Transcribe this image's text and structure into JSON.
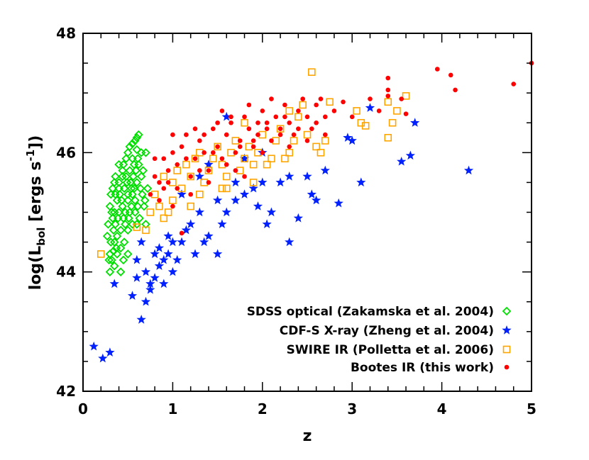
{
  "chart_data": {
    "type": "scatter",
    "xlabel": "z",
    "ylabel": {
      "prefix": "log(L",
      "sub": "bol",
      "mid": " [ergs s",
      "sup": "-1",
      "suffix": "])"
    },
    "xlim": [
      0,
      5
    ],
    "ylim": [
      42,
      48
    ],
    "x_ticks": [
      "0",
      "1",
      "2",
      "3",
      "4",
      "5"
    ],
    "x_tick_values": [
      0,
      1,
      2,
      3,
      4,
      5
    ],
    "y_ticks": [
      "42",
      "44",
      "46",
      "48"
    ],
    "y_tick_values": [
      42,
      44,
      46,
      48
    ],
    "x_minor_step": 0.2,
    "y_minor_step": 0.5,
    "legend_position": "bottom-right",
    "series": [
      {
        "name": "SDSS optical (Zakamska et al. 2004)",
        "marker": "diamond",
        "color": "#00e000",
        "values": [
          [
            0.3,
            44.0
          ],
          [
            0.32,
            44.2
          ],
          [
            0.35,
            44.5
          ],
          [
            0.28,
            44.8
          ],
          [
            0.3,
            45.1
          ],
          [
            0.33,
            45.4
          ],
          [
            0.36,
            45.3
          ],
          [
            0.4,
            45.0
          ],
          [
            0.42,
            44.7
          ],
          [
            0.45,
            44.9
          ],
          [
            0.38,
            44.6
          ],
          [
            0.4,
            45.5
          ],
          [
            0.44,
            45.7
          ],
          [
            0.48,
            45.6
          ],
          [
            0.5,
            45.3
          ],
          [
            0.52,
            45.0
          ],
          [
            0.55,
            44.8
          ],
          [
            0.58,
            45.2
          ],
          [
            0.6,
            45.5
          ],
          [
            0.62,
            45.8
          ],
          [
            0.65,
            45.6
          ],
          [
            0.55,
            45.9
          ],
          [
            0.5,
            46.0
          ],
          [
            0.48,
            45.9
          ],
          [
            0.45,
            45.8
          ],
          [
            0.58,
            46.2
          ],
          [
            0.55,
            46.15
          ],
          [
            0.52,
            46.1
          ],
          [
            0.6,
            46.05
          ],
          [
            0.65,
            46.0
          ],
          [
            0.62,
            46.3
          ],
          [
            0.68,
            45.1
          ],
          [
            0.7,
            44.8
          ],
          [
            0.72,
            45.4
          ],
          [
            0.35,
            44.1
          ],
          [
            0.3,
            44.3
          ],
          [
            0.27,
            44.6
          ],
          [
            0.33,
            44.9
          ],
          [
            0.36,
            45.6
          ],
          [
            0.4,
            45.8
          ],
          [
            0.42,
            44.4
          ],
          [
            0.46,
            44.5
          ],
          [
            0.5,
            44.7
          ],
          [
            0.53,
            45.5
          ],
          [
            0.57,
            45.4
          ],
          [
            0.61,
            45.1
          ],
          [
            0.63,
            44.9
          ],
          [
            0.66,
            45.3
          ],
          [
            0.35,
            45.0
          ],
          [
            0.38,
            45.2
          ],
          [
            0.41,
            45.3
          ],
          [
            0.44,
            45.1
          ],
          [
            0.47,
            45.0
          ],
          [
            0.51,
            44.9
          ],
          [
            0.54,
            45.1
          ],
          [
            0.56,
            45.6
          ],
          [
            0.59,
            45.7
          ],
          [
            0.64,
            45.4
          ],
          [
            0.67,
            45.7
          ],
          [
            0.69,
            45.2
          ],
          [
            0.31,
            44.5
          ],
          [
            0.34,
            44.7
          ],
          [
            0.37,
            44.4
          ],
          [
            0.39,
            44.9
          ],
          [
            0.43,
            45.2
          ],
          [
            0.46,
            45.4
          ],
          [
            0.49,
            45.5
          ],
          [
            0.52,
            45.7
          ],
          [
            0.55,
            45.3
          ],
          [
            0.58,
            45.0
          ],
          [
            0.6,
            44.8
          ],
          [
            0.29,
            44.2
          ],
          [
            0.32,
            45.0
          ],
          [
            0.36,
            44.8
          ],
          [
            0.4,
            45.4
          ],
          [
            0.44,
            45.6
          ],
          [
            0.47,
            44.8
          ],
          [
            0.5,
            45.2
          ],
          [
            0.54,
            45.4
          ],
          [
            0.57,
            45.8
          ],
          [
            0.61,
            45.9
          ],
          [
            0.5,
            44.3
          ],
          [
            0.45,
            44.2
          ],
          [
            0.42,
            44.0
          ],
          [
            0.38,
            44.3
          ],
          [
            0.34,
            44.35
          ],
          [
            0.31,
            45.3
          ],
          [
            0.35,
            45.5
          ],
          [
            0.6,
            46.25
          ],
          [
            0.7,
            46.0
          ]
        ]
      },
      {
        "name": "CDF-S X-ray (Zheng et al. 2004)",
        "marker": "star",
        "color": "#0020ff",
        "values": [
          [
            0.12,
            42.75
          ],
          [
            0.22,
            42.55
          ],
          [
            0.3,
            42.65
          ],
          [
            0.65,
            43.2
          ],
          [
            0.35,
            43.8
          ],
          [
            0.55,
            43.6
          ],
          [
            0.6,
            43.9
          ],
          [
            0.7,
            43.5
          ],
          [
            0.75,
            43.7
          ],
          [
            0.8,
            43.9
          ],
          [
            0.85,
            44.1
          ],
          [
            0.9,
            44.2
          ],
          [
            0.95,
            44.3
          ],
          [
            0.6,
            44.2
          ],
          [
            0.65,
            44.5
          ],
          [
            0.7,
            44.0
          ],
          [
            0.8,
            44.3
          ],
          [
            0.75,
            43.8
          ],
          [
            0.9,
            43.8
          ],
          [
            1.0,
            44.0
          ],
          [
            1.05,
            44.2
          ],
          [
            1.1,
            44.5
          ],
          [
            1.15,
            44.7
          ],
          [
            1.2,
            44.8
          ],
          [
            1.3,
            45.0
          ],
          [
            1.35,
            44.5
          ],
          [
            1.4,
            44.6
          ],
          [
            1.5,
            44.3
          ],
          [
            1.55,
            44.8
          ],
          [
            1.6,
            45.0
          ],
          [
            1.7,
            45.2
          ],
          [
            1.8,
            45.3
          ],
          [
            1.9,
            45.4
          ],
          [
            2.0,
            45.5
          ],
          [
            2.05,
            44.8
          ],
          [
            2.1,
            45.0
          ],
          [
            2.2,
            45.5
          ],
          [
            2.3,
            45.6
          ],
          [
            2.4,
            44.9
          ],
          [
            2.5,
            45.6
          ],
          [
            2.55,
            45.3
          ],
          [
            2.6,
            45.2
          ],
          [
            2.85,
            45.15
          ],
          [
            2.95,
            46.25
          ],
          [
            3.0,
            46.2
          ],
          [
            3.1,
            45.5
          ],
          [
            3.2,
            46.75
          ],
          [
            3.55,
            45.85
          ],
          [
            3.65,
            45.95
          ],
          [
            3.7,
            46.5
          ],
          [
            4.3,
            45.7
          ],
          [
            1.6,
            46.6
          ],
          [
            1.8,
            45.9
          ],
          [
            2.0,
            46.0
          ],
          [
            1.3,
            45.6
          ],
          [
            1.1,
            45.3
          ],
          [
            1.4,
            45.8
          ],
          [
            1.5,
            45.2
          ],
          [
            1.7,
            45.5
          ],
          [
            1.25,
            44.3
          ],
          [
            1.0,
            44.5
          ],
          [
            0.85,
            44.4
          ],
          [
            0.95,
            44.6
          ],
          [
            2.7,
            45.7
          ],
          [
            2.3,
            44.5
          ],
          [
            1.95,
            45.1
          ]
        ]
      },
      {
        "name": "SWIRE IR (Polletta et al. 2006)",
        "marker": "square",
        "color": "#ffa500",
        "values": [
          [
            0.2,
            44.3
          ],
          [
            0.6,
            44.75
          ],
          [
            0.7,
            44.7
          ],
          [
            0.75,
            45.0
          ],
          [
            0.8,
            45.3
          ],
          [
            0.85,
            45.1
          ],
          [
            0.9,
            45.6
          ],
          [
            0.95,
            45.0
          ],
          [
            1.0,
            45.5
          ],
          [
            1.05,
            45.7
          ],
          [
            1.1,
            45.4
          ],
          [
            1.15,
            45.8
          ],
          [
            1.2,
            45.6
          ],
          [
            1.25,
            45.9
          ],
          [
            1.3,
            46.0
          ],
          [
            1.35,
            45.5
          ],
          [
            1.4,
            45.7
          ],
          [
            1.45,
            45.9
          ],
          [
            1.5,
            46.1
          ],
          [
            1.55,
            45.8
          ],
          [
            1.6,
            45.6
          ],
          [
            1.65,
            46.0
          ],
          [
            1.7,
            46.2
          ],
          [
            1.75,
            45.7
          ],
          [
            1.8,
            45.9
          ],
          [
            1.85,
            46.1
          ],
          [
            1.9,
            45.5
          ],
          [
            1.95,
            46.0
          ],
          [
            2.0,
            46.3
          ],
          [
            2.05,
            45.8
          ],
          [
            2.1,
            45.9
          ],
          [
            2.15,
            46.2
          ],
          [
            2.2,
            46.4
          ],
          [
            2.25,
            45.9
          ],
          [
            2.3,
            46.0
          ],
          [
            2.35,
            46.2
          ],
          [
            2.4,
            46.6
          ],
          [
            2.45,
            46.8
          ],
          [
            2.5,
            46.3
          ],
          [
            2.55,
            47.35
          ],
          [
            2.6,
            46.1
          ],
          [
            2.65,
            46.0
          ],
          [
            2.7,
            46.2
          ],
          [
            2.75,
            46.85
          ],
          [
            3.05,
            46.7
          ],
          [
            3.1,
            46.5
          ],
          [
            3.15,
            46.45
          ],
          [
            3.4,
            46.85
          ],
          [
            3.45,
            46.5
          ],
          [
            3.4,
            46.25
          ],
          [
            3.5,
            46.7
          ],
          [
            3.6,
            46.95
          ],
          [
            1.0,
            45.2
          ],
          [
            1.3,
            45.3
          ],
          [
            1.55,
            45.4
          ],
          [
            1.2,
            45.1
          ],
          [
            0.9,
            44.9
          ],
          [
            1.8,
            46.5
          ],
          [
            2.3,
            46.7
          ],
          [
            1.6,
            45.4
          ],
          [
            1.9,
            45.8
          ]
        ]
      },
      {
        "name": "Bootes IR (this work)",
        "marker": "circle",
        "color": "#ff0000",
        "values": [
          [
            0.75,
            45.3
          ],
          [
            0.8,
            45.6
          ],
          [
            0.85,
            45.5
          ],
          [
            0.9,
            45.9
          ],
          [
            0.95,
            45.7
          ],
          [
            1.0,
            46.0
          ],
          [
            1.05,
            45.8
          ],
          [
            1.1,
            46.1
          ],
          [
            1.15,
            46.3
          ],
          [
            1.2,
            45.6
          ],
          [
            1.25,
            45.9
          ],
          [
            1.3,
            46.2
          ],
          [
            1.35,
            46.0
          ],
          [
            1.4,
            45.7
          ],
          [
            1.45,
            46.4
          ],
          [
            1.5,
            46.1
          ],
          [
            1.55,
            45.9
          ],
          [
            1.6,
            46.3
          ],
          [
            1.65,
            46.5
          ],
          [
            1.7,
            46.0
          ],
          [
            1.75,
            46.2
          ],
          [
            1.8,
            46.6
          ],
          [
            1.85,
            46.4
          ],
          [
            1.9,
            46.1
          ],
          [
            1.95,
            46.3
          ],
          [
            2.0,
            46.7
          ],
          [
            2.05,
            46.5
          ],
          [
            2.1,
            46.2
          ],
          [
            2.15,
            46.6
          ],
          [
            2.2,
            46.4
          ],
          [
            2.25,
            46.8
          ],
          [
            2.3,
            46.5
          ],
          [
            2.35,
            46.3
          ],
          [
            2.4,
            46.7
          ],
          [
            2.45,
            46.9
          ],
          [
            2.5,
            46.6
          ],
          [
            2.55,
            46.4
          ],
          [
            2.6,
            46.8
          ],
          [
            2.65,
            46.9
          ],
          [
            2.7,
            46.6
          ],
          [
            2.8,
            46.7
          ],
          [
            2.9,
            46.85
          ],
          [
            3.0,
            46.6
          ],
          [
            3.2,
            46.9
          ],
          [
            3.3,
            46.7
          ],
          [
            3.4,
            46.95
          ],
          [
            3.4,
            47.05
          ],
          [
            3.4,
            47.25
          ],
          [
            3.55,
            46.9
          ],
          [
            3.6,
            46.65
          ],
          [
            3.95,
            47.4
          ],
          [
            4.1,
            47.3
          ],
          [
            4.15,
            47.05
          ],
          [
            4.8,
            47.15
          ],
          [
            5.0,
            47.5
          ],
          [
            1.1,
            44.65
          ],
          [
            1.0,
            45.1
          ],
          [
            0.9,
            45.4
          ],
          [
            1.2,
            45.3
          ],
          [
            1.4,
            45.5
          ],
          [
            1.7,
            45.7
          ],
          [
            2.0,
            46.0
          ],
          [
            2.3,
            46.1
          ],
          [
            1.25,
            46.4
          ],
          [
            1.5,
            46.5
          ],
          [
            1.85,
            46.8
          ],
          [
            2.1,
            46.9
          ],
          [
            0.85,
            45.2
          ],
          [
            0.95,
            45.5
          ],
          [
            1.05,
            45.4
          ],
          [
            1.3,
            45.7
          ],
          [
            1.6,
            45.8
          ],
          [
            1.9,
            46.2
          ],
          [
            2.2,
            46.3
          ],
          [
            2.4,
            46.4
          ],
          [
            2.6,
            46.5
          ],
          [
            1.15,
            45.9
          ],
          [
            1.45,
            46.0
          ],
          [
            1.75,
            46.1
          ],
          [
            2.05,
            46.4
          ],
          [
            1.35,
            46.3
          ],
          [
            1.65,
            46.6
          ],
          [
            1.95,
            46.5
          ],
          [
            2.25,
            46.6
          ],
          [
            2.5,
            46.2
          ],
          [
            0.8,
            45.9
          ],
          [
            1.0,
            46.3
          ],
          [
            1.55,
            46.7
          ],
          [
            1.8,
            45.6
          ],
          [
            2.7,
            46.3
          ]
        ]
      }
    ]
  }
}
